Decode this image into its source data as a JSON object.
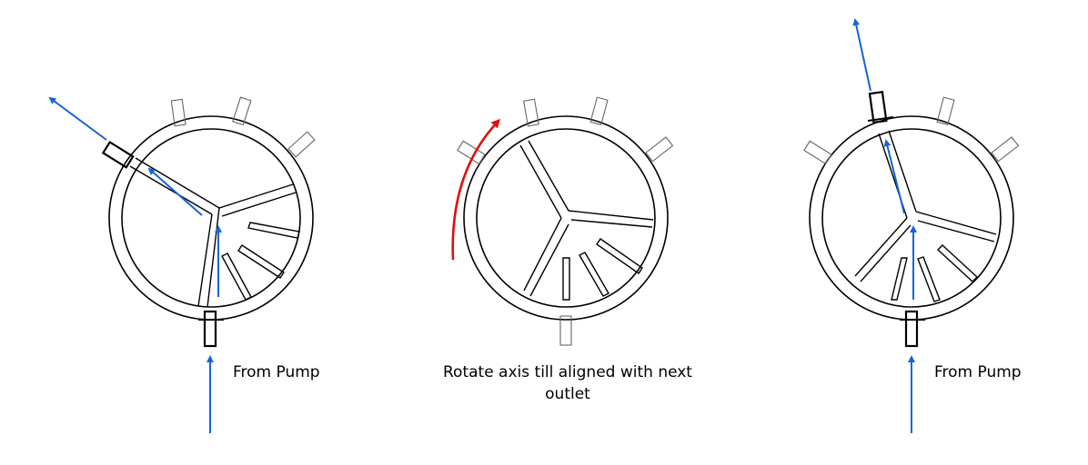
{
  "labels": {
    "left_pump": "From Pump",
    "middle_line1": "Rotate axis till aligned with next",
    "middle_line2": "outlet",
    "right_pump": "From Pump"
  },
  "colors": {
    "flow_arrow": "#1565d8",
    "rotate_arrow": "#e01010",
    "outline": "#000000",
    "port_outline": "#666666"
  }
}
